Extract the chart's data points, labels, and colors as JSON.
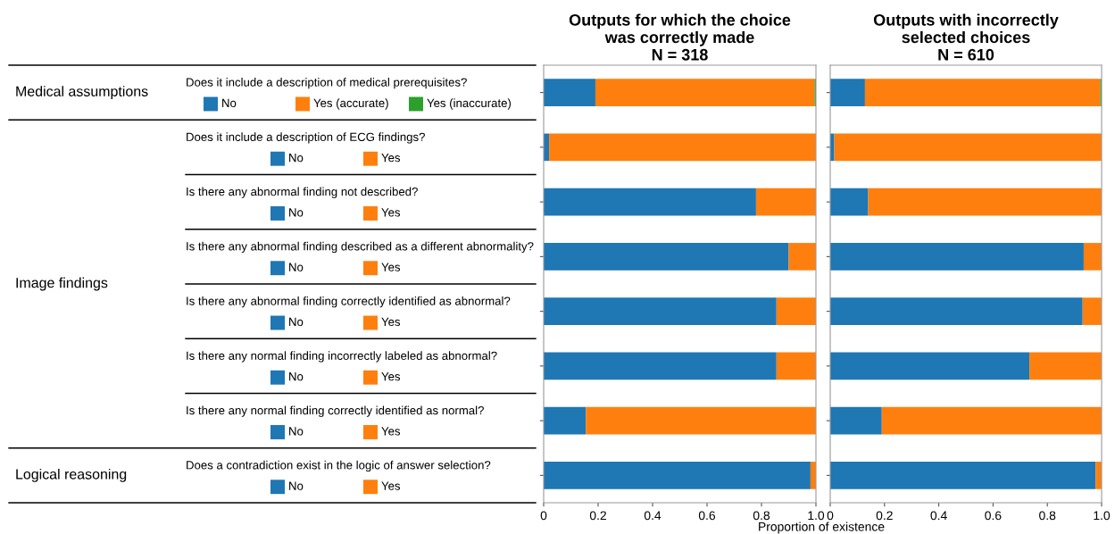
{
  "chart_data": [
    {
      "type": "bar",
      "orientation": "horizontal",
      "stacked": true,
      "title": "Outputs for which the choice\nwas correctly made\nN = 318",
      "xlabel": "Proportion of existence",
      "categories": [
        "Does it include a description of medical prerequisites?",
        "Does it include a description of ECG findings?",
        "Is there any abnormal finding not described?",
        "Is there any abnormal finding described as a different abnormality?",
        "Is there any abnormal finding correctly identified as abnormal?",
        "Is there any normal finding incorrectly labeled as abnormal?",
        "Is there any normal finding correctly identified as normal?",
        "Does a contradiction exist in the logic of answer selection?"
      ],
      "series": [
        {
          "name": "No",
          "color": "#1f77b4",
          "values": [
            0.19,
            0.02,
            0.78,
            0.9,
            0.855,
            0.855,
            0.155,
            0.98
          ]
        },
        {
          "name": "Yes (accurate)",
          "color": "#ff7f0e",
          "values": [
            0.805,
            null,
            null,
            null,
            null,
            null,
            null,
            null
          ]
        },
        {
          "name": "Yes (inaccurate)",
          "color": "#2ca02c",
          "values": [
            0.005,
            null,
            null,
            null,
            null,
            null,
            null,
            null
          ]
        },
        {
          "name": "Yes",
          "color": "#ff7f0e",
          "values": [
            null,
            0.98,
            0.22,
            0.1,
            0.145,
            0.145,
            0.845,
            0.02
          ]
        }
      ],
      "xlim": [
        0,
        1
      ],
      "xticks": [
        0,
        0.2,
        0.4,
        0.6,
        0.8,
        {
          "value": 1,
          "label": "1.0"
        }
      ],
      "legend": "left",
      "annotations": [
        "Medical assumptions",
        "Image findings",
        "Logical reasoning"
      ]
    },
    {
      "type": "bar",
      "orientation": "horizontal",
      "stacked": true,
      "title": "Outputs with incorrectly\nselected choices\nN = 610",
      "categories": [
        null,
        null,
        null,
        null,
        null,
        null,
        null,
        null
      ],
      "series": [
        {
          "color": "#1f77b4",
          "values": [
            0.128,
            0.015,
            0.14,
            0.934,
            0.93,
            0.734,
            0.19,
            0.978
          ]
        },
        {
          "color": "#ff7f0e",
          "values": [
            0.867,
            null,
            null,
            null,
            null,
            null,
            null,
            null
          ]
        },
        {
          "color": "#2ca02c",
          "values": [
            0.005,
            null,
            null,
            null,
            null,
            null,
            null,
            null
          ]
        },
        {
          "color": "#ff7f0e",
          "values": [
            null,
            0.985,
            0.86,
            0.066,
            0.07,
            0.266,
            0.81,
            0.022
          ]
        }
      ],
      "xlim": [
        0,
        1
      ],
      "xticks": [
        0,
        0.2,
        0.4,
        0.6,
        0.8,
        {
          "value": 1,
          "label": "1.0"
        }
      ],
      "tick_labels": "x"
    }
  ]
}
